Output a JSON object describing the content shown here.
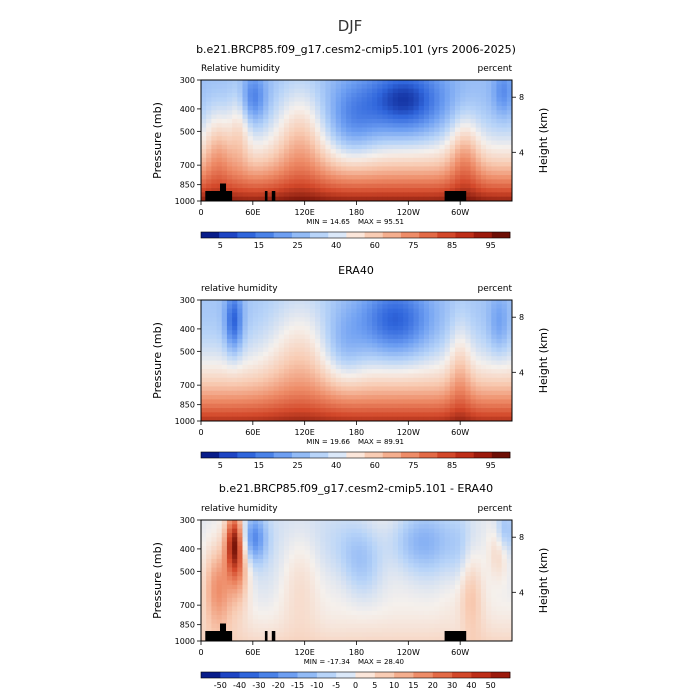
{
  "page_title": "DJF",
  "chart_data": [
    {
      "type": "heatmap",
      "title": "b.e21.BRCP85.f09_g17.cesm2-cmip5.101 (yrs 2006-2025)",
      "left_label": "Relative humidity",
      "right_label": "percent",
      "ylabel": "Pressure (mb)",
      "y2label": "Height (km)",
      "x_ticks": [
        "0",
        "60E",
        "120E",
        "180",
        "120W",
        "60W"
      ],
      "y_ticks": [
        300,
        400,
        500,
        700,
        850,
        1000
      ],
      "y2_ticks": [
        8,
        4
      ],
      "min_label": "MIN =   14.65",
      "max_label": "MAX =   95.51",
      "min": 14.65,
      "max": 95.51,
      "colorbar_labels": [
        "5",
        "15",
        "25",
        "40",
        "60",
        "75",
        "85",
        "95"
      ],
      "colorbar_colors": [
        "#081d8a",
        "#1e45c4",
        "#3066dc",
        "#4a82e8",
        "#6e9ff2",
        "#92bbf6",
        "#b8d4f8",
        "#dbe8f8",
        "#fbe6da",
        "#f8ccb4",
        "#f4ae8e",
        "#ee8c68",
        "#e36a46",
        "#d3482a",
        "#be2e18",
        "#9c1a0c",
        "#6e0e05"
      ],
      "scale": "rh"
    },
    {
      "type": "heatmap",
      "title": "ERA40",
      "left_label": "relative humidity",
      "right_label": "percent",
      "ylabel": "Pressure (mb)",
      "y2label": "Height (km)",
      "x_ticks": [
        "0",
        "60E",
        "120E",
        "180",
        "120W",
        "60W"
      ],
      "y_ticks": [
        300,
        400,
        500,
        700,
        850,
        1000
      ],
      "y2_ticks": [
        8,
        4
      ],
      "min_label": "MIN =   19.66",
      "max_label": "MAX =   89.91",
      "min": 19.66,
      "max": 89.91,
      "colorbar_labels": [
        "5",
        "15",
        "25",
        "40",
        "60",
        "75",
        "85",
        "95"
      ],
      "colorbar_colors": [
        "#081d8a",
        "#1e45c4",
        "#3066dc",
        "#4a82e8",
        "#6e9ff2",
        "#92bbf6",
        "#b8d4f8",
        "#dbe8f8",
        "#fbe6da",
        "#f8ccb4",
        "#f4ae8e",
        "#ee8c68",
        "#e36a46",
        "#d3482a",
        "#be2e18",
        "#9c1a0c",
        "#6e0e05"
      ],
      "scale": "rh"
    },
    {
      "type": "heatmap",
      "title": "b.e21.BRCP85.f09_g17.cesm2-cmip5.101 - ERA40",
      "left_label": "relative humidity",
      "right_label": "percent",
      "ylabel": "Pressure (mb)",
      "y2label": "Height (km)",
      "x_ticks": [
        "0",
        "60E",
        "120E",
        "180",
        "120W",
        "60W"
      ],
      "y_ticks": [
        300,
        400,
        500,
        700,
        850,
        1000
      ],
      "y2_ticks": [
        8,
        4
      ],
      "min_label": "MIN =  -17.34",
      "max_label": "MAX =   28.40",
      "min": -17.34,
      "max": 28.4,
      "colorbar_labels": [
        "-50",
        "-40",
        "-30",
        "-20",
        "-15",
        "-10",
        "-5",
        "0",
        "5",
        "10",
        "15",
        "20",
        "30",
        "40",
        "50"
      ],
      "colorbar_colors": [
        "#081d8a",
        "#1e45c4",
        "#3066dc",
        "#4a82e8",
        "#6e9ff2",
        "#92bbf6",
        "#b8d4f8",
        "#dbe8f8",
        "#fbe6da",
        "#f8ccb4",
        "#f4ae8e",
        "#ee8c68",
        "#e36a46",
        "#d3482a",
        "#be2e18",
        "#9c1a0c"
      ],
      "scale": "diff"
    }
  ]
}
